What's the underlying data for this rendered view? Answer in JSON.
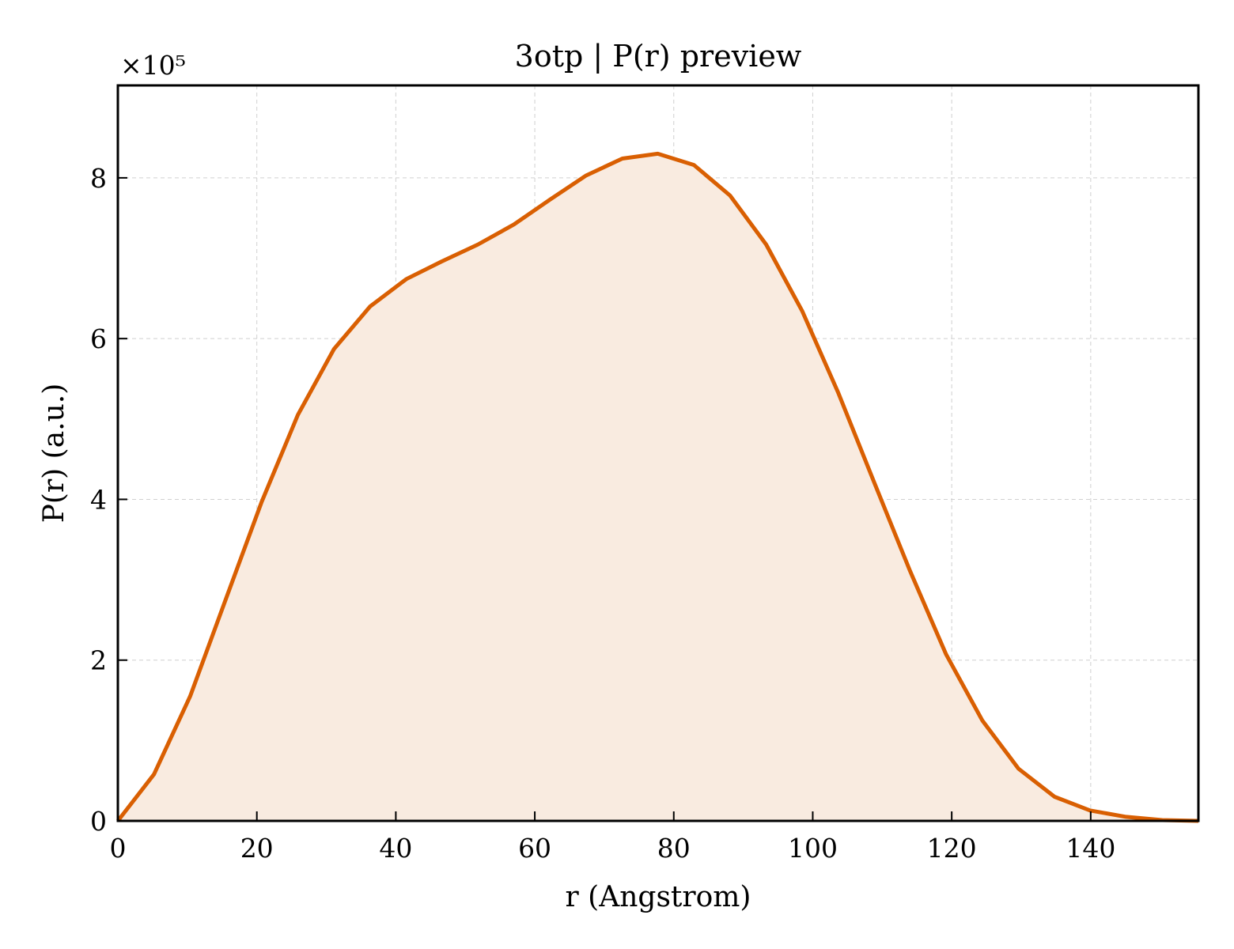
{
  "chart_data": {
    "type": "area",
    "title": "3otp | P(r) preview",
    "xlabel": "r (Angstrom)",
    "ylabel": "P(r) (a.u.)",
    "y_multiplier_label": "×10⁵",
    "xlim": [
      0,
      155.5
    ],
    "ylim": [
      0,
      9.15
    ],
    "xticks": [
      0,
      20,
      40,
      60,
      80,
      100,
      120,
      140
    ],
    "yticks": [
      0,
      2,
      4,
      6,
      8
    ],
    "grid": true,
    "line_color": "#d95f02",
    "fill_color": "#f9ebe0",
    "series": [
      {
        "x": [
          0,
          5.2,
          10.4,
          15.5,
          20.7,
          25.9,
          31.1,
          36.3,
          41.5,
          46.6,
          51.8,
          57.0,
          62.2,
          67.4,
          72.6,
          77.7,
          82.9,
          88.1,
          93.3,
          98.5,
          103.7,
          108.8,
          114.0,
          119.2,
          124.4,
          129.6,
          134.8,
          139.9,
          145.1,
          150.3,
          155.5
        ],
        "values": [
          0,
          0.58,
          1.55,
          2.75,
          3.97,
          5.05,
          5.87,
          6.4,
          6.74,
          6.96,
          7.17,
          7.42,
          7.73,
          8.03,
          8.24,
          8.3,
          8.16,
          7.78,
          7.17,
          6.34,
          5.32,
          4.22,
          3.11,
          2.07,
          1.25,
          0.65,
          0.3,
          0.13,
          0.05,
          0.01,
          0.0
        ]
      }
    ]
  }
}
